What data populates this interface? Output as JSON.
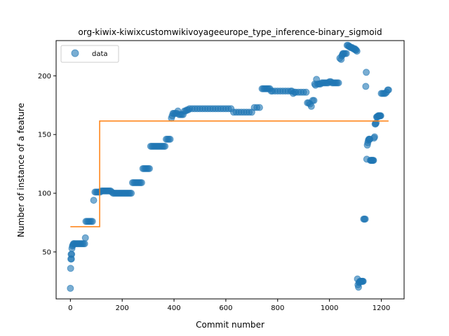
{
  "chart_data": {
    "type": "scatter",
    "title": "org-kiwix-kiwixcustomwikivoyageeurope_type_inference-binary_sigmoid",
    "xlabel": "Commit number",
    "ylabel": "Number of instance of a feature",
    "xlim": [
      -55,
      1288
    ],
    "ylim": [
      10,
      230
    ],
    "xticks": [
      0,
      200,
      400,
      600,
      800,
      1000,
      1200
    ],
    "yticks": [
      50,
      100,
      150,
      200
    ],
    "grid": false,
    "legend": {
      "placement": "top-left",
      "entries": [
        "data"
      ]
    },
    "colors": {
      "points": "#1f77b4",
      "fit": "#ff7f0e"
    },
    "series": [
      {
        "name": "data",
        "kind": "scatter",
        "points": [
          [
            0,
            19
          ],
          [
            1,
            36
          ],
          [
            2,
            44
          ],
          [
            3,
            48
          ],
          [
            4,
            44
          ],
          [
            5,
            48
          ],
          [
            6,
            53
          ],
          [
            8,
            55
          ],
          [
            10,
            56
          ],
          [
            12,
            57
          ],
          [
            15,
            57
          ],
          [
            20,
            57
          ],
          [
            25,
            57
          ],
          [
            30,
            57
          ],
          [
            35,
            57
          ],
          [
            40,
            57
          ],
          [
            45,
            57
          ],
          [
            50,
            57
          ],
          [
            55,
            57
          ],
          [
            58,
            62
          ],
          [
            60,
            76
          ],
          [
            65,
            76
          ],
          [
            70,
            76
          ],
          [
            75,
            76
          ],
          [
            80,
            76
          ],
          [
            85,
            76
          ],
          [
            90,
            94
          ],
          [
            95,
            101
          ],
          [
            100,
            101
          ],
          [
            105,
            101
          ],
          [
            110,
            101
          ],
          [
            115,
            101
          ],
          [
            120,
            102
          ],
          [
            125,
            102
          ],
          [
            130,
            102
          ],
          [
            135,
            102
          ],
          [
            140,
            102
          ],
          [
            145,
            102
          ],
          [
            150,
            102
          ],
          [
            155,
            102
          ],
          [
            160,
            101
          ],
          [
            165,
            100
          ],
          [
            170,
            100
          ],
          [
            175,
            100
          ],
          [
            180,
            100
          ],
          [
            185,
            100
          ],
          [
            190,
            100
          ],
          [
            195,
            100
          ],
          [
            200,
            100
          ],
          [
            205,
            100
          ],
          [
            210,
            100
          ],
          [
            215,
            100
          ],
          [
            220,
            100
          ],
          [
            225,
            100
          ],
          [
            230,
            100
          ],
          [
            235,
            100
          ],
          [
            240,
            109
          ],
          [
            245,
            109
          ],
          [
            250,
            109
          ],
          [
            255,
            109
          ],
          [
            260,
            109
          ],
          [
            265,
            109
          ],
          [
            270,
            109
          ],
          [
            275,
            109
          ],
          [
            280,
            121
          ],
          [
            285,
            121
          ],
          [
            290,
            121
          ],
          [
            295,
            121
          ],
          [
            300,
            121
          ],
          [
            305,
            121
          ],
          [
            310,
            140
          ],
          [
            315,
            140
          ],
          [
            320,
            140
          ],
          [
            325,
            140
          ],
          [
            330,
            140
          ],
          [
            335,
            140
          ],
          [
            340,
            140
          ],
          [
            345,
            140
          ],
          [
            350,
            140
          ],
          [
            355,
            140
          ],
          [
            360,
            140
          ],
          [
            365,
            140
          ],
          [
            370,
            146
          ],
          [
            375,
            146
          ],
          [
            380,
            146
          ],
          [
            385,
            146
          ],
          [
            390,
            164
          ],
          [
            393,
            166
          ],
          [
            396,
            168
          ],
          [
            400,
            168
          ],
          [
            405,
            168
          ],
          [
            410,
            168
          ],
          [
            415,
            170
          ],
          [
            420,
            167
          ],
          [
            425,
            167
          ],
          [
            430,
            167
          ],
          [
            435,
            167
          ],
          [
            440,
            170
          ],
          [
            445,
            170
          ],
          [
            450,
            171
          ],
          [
            455,
            171
          ],
          [
            460,
            172
          ],
          [
            470,
            172
          ],
          [
            480,
            172
          ],
          [
            490,
            172
          ],
          [
            500,
            172
          ],
          [
            510,
            172
          ],
          [
            520,
            172
          ],
          [
            530,
            172
          ],
          [
            540,
            172
          ],
          [
            550,
            172
          ],
          [
            560,
            172
          ],
          [
            570,
            172
          ],
          [
            580,
            172
          ],
          [
            590,
            172
          ],
          [
            600,
            172
          ],
          [
            610,
            172
          ],
          [
            620,
            172
          ],
          [
            630,
            169
          ],
          [
            640,
            169
          ],
          [
            650,
            169
          ],
          [
            660,
            169
          ],
          [
            670,
            169
          ],
          [
            680,
            169
          ],
          [
            690,
            169
          ],
          [
            700,
            169
          ],
          [
            710,
            173
          ],
          [
            720,
            173
          ],
          [
            730,
            173
          ],
          [
            740,
            189
          ],
          [
            745,
            189
          ],
          [
            750,
            189
          ],
          [
            755,
            189
          ],
          [
            760,
            189
          ],
          [
            765,
            189
          ],
          [
            770,
            189
          ],
          [
            775,
            187
          ],
          [
            780,
            187
          ],
          [
            790,
            187
          ],
          [
            800,
            187
          ],
          [
            810,
            187
          ],
          [
            820,
            187
          ],
          [
            830,
            187
          ],
          [
            840,
            187
          ],
          [
            850,
            187
          ],
          [
            855,
            187
          ],
          [
            860,
            185
          ],
          [
            865,
            186
          ],
          [
            870,
            186
          ],
          [
            880,
            186
          ],
          [
            890,
            186
          ],
          [
            900,
            186
          ],
          [
            910,
            186
          ],
          [
            915,
            177
          ],
          [
            920,
            177
          ],
          [
            925,
            176
          ],
          [
            930,
            174
          ],
          [
            935,
            179
          ],
          [
            940,
            179
          ],
          [
            943,
            193
          ],
          [
            946,
            192
          ],
          [
            950,
            197
          ],
          [
            955,
            193
          ],
          [
            960,
            193
          ],
          [
            965,
            193
          ],
          [
            970,
            194
          ],
          [
            975,
            194
          ],
          [
            980,
            194
          ],
          [
            985,
            194
          ],
          [
            990,
            194
          ],
          [
            995,
            194
          ],
          [
            1000,
            195
          ],
          [
            1005,
            195
          ],
          [
            1010,
            194
          ],
          [
            1015,
            194
          ],
          [
            1020,
            194
          ],
          [
            1025,
            194
          ],
          [
            1030,
            194
          ],
          [
            1035,
            194
          ],
          [
            1040,
            215
          ],
          [
            1045,
            214
          ],
          [
            1048,
            217
          ],
          [
            1050,
            218
          ],
          [
            1052,
            219
          ],
          [
            1055,
            219
          ],
          [
            1060,
            219
          ],
          [
            1065,
            219
          ],
          [
            1068,
            226
          ],
          [
            1072,
            226
          ],
          [
            1075,
            225
          ],
          [
            1078,
            225
          ],
          [
            1082,
            224
          ],
          [
            1085,
            224
          ],
          [
            1088,
            224
          ],
          [
            1092,
            223
          ],
          [
            1095,
            223
          ],
          [
            1098,
            223
          ],
          [
            1100,
            222
          ],
          [
            1103,
            222
          ],
          [
            1106,
            221
          ],
          [
            1108,
            27
          ],
          [
            1110,
            22
          ],
          [
            1112,
            20
          ],
          [
            1114,
            24
          ],
          [
            1116,
            24
          ],
          [
            1118,
            25
          ],
          [
            1120,
            25
          ],
          [
            1122,
            25
          ],
          [
            1124,
            25
          ],
          [
            1126,
            25
          ],
          [
            1128,
            25
          ],
          [
            1130,
            25
          ],
          [
            1132,
            78
          ],
          [
            1135,
            78
          ],
          [
            1138,
            78
          ],
          [
            1140,
            191
          ],
          [
            1142,
            203
          ],
          [
            1144,
            129
          ],
          [
            1146,
            141
          ],
          [
            1148,
            143
          ],
          [
            1150,
            145
          ],
          [
            1152,
            146
          ],
          [
            1154,
            146
          ],
          [
            1156,
            146
          ],
          [
            1158,
            128
          ],
          [
            1160,
            128
          ],
          [
            1162,
            128
          ],
          [
            1164,
            128
          ],
          [
            1166,
            128
          ],
          [
            1168,
            128
          ],
          [
            1170,
            128
          ],
          [
            1172,
            147
          ],
          [
            1174,
            148
          ],
          [
            1176,
            159
          ],
          [
            1178,
            159
          ],
          [
            1180,
            160
          ],
          [
            1182,
            165
          ],
          [
            1184,
            165
          ],
          [
            1186,
            165
          ],
          [
            1188,
            166
          ],
          [
            1190,
            166
          ],
          [
            1192,
            166
          ],
          [
            1194,
            166
          ],
          [
            1196,
            166
          ],
          [
            1198,
            166
          ],
          [
            1200,
            185
          ],
          [
            1205,
            185
          ],
          [
            1210,
            185
          ],
          [
            1215,
            185
          ],
          [
            1220,
            186
          ],
          [
            1225,
            188
          ],
          [
            1228,
            188
          ]
        ]
      },
      {
        "name": "",
        "kind": "line",
        "points": [
          [
            0,
            71.5
          ],
          [
            113,
            71.5
          ],
          [
            113,
            161.5
          ],
          [
            1228,
            161.5
          ]
        ]
      }
    ]
  }
}
